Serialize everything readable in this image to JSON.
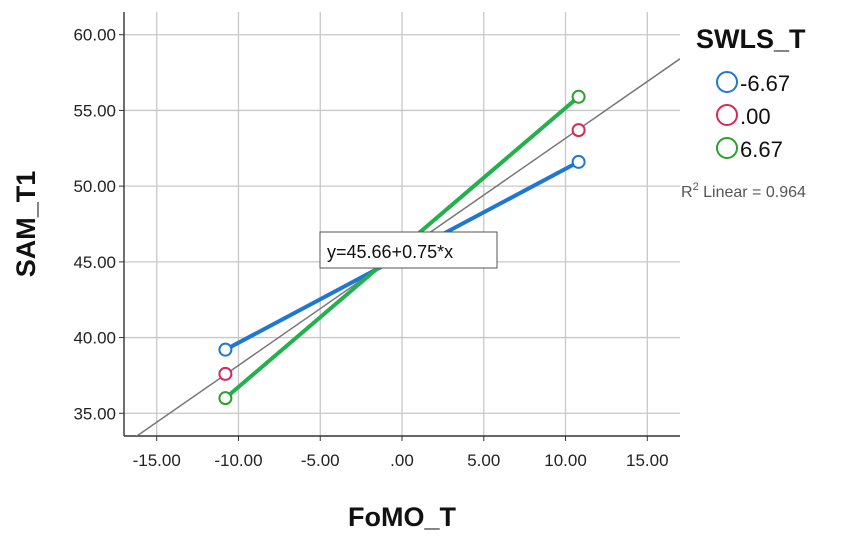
{
  "chart_data": {
    "type": "scatter",
    "xlabel": "FoMO_T",
    "ylabel": "SAM_T1",
    "xlim": [
      -17,
      17
    ],
    "ylim": [
      33.5,
      61.5
    ],
    "x_ticks": [
      -15,
      -10,
      -5,
      0,
      5,
      10,
      15
    ],
    "x_tick_labels": [
      "-15.00",
      "-10.00",
      "-5.00",
      ".00",
      "5.00",
      "10.00",
      "15.00"
    ],
    "y_ticks": [
      35,
      40,
      45,
      50,
      55,
      60
    ],
    "y_tick_labels": [
      "35.00",
      "40.00",
      "45.00",
      "50.00",
      "55.00",
      "60.00"
    ],
    "grid": true,
    "legend": {
      "title": "SWLS_T",
      "placement": "right"
    },
    "series": [
      {
        "name": "-6.67",
        "color": "#1f77d4",
        "x": [
          -10.8,
          10.8
        ],
        "y": [
          39.2,
          51.6
        ]
      },
      {
        "name": ".00",
        "color": "#d62a55",
        "x": [
          -10.8,
          10.8
        ],
        "y": [
          37.6,
          53.7
        ]
      },
      {
        "name": "6.67",
        "color": "#2ca02c",
        "x": [
          -10.8,
          10.8
        ],
        "y": [
          36.0,
          55.9
        ]
      }
    ],
    "fit_lines": [
      {
        "series": "-6.67",
        "color": "#1f77d4"
      },
      {
        "series": "6.67",
        "color": "#22b14c"
      }
    ],
    "total_fit": {
      "equation": "y=45.66+0.75*x",
      "intercept": 45.66,
      "slope": 0.75,
      "r2_label": "R",
      "r2_sup": "2",
      "r2_text": " Linear = 0.964",
      "color": "#777777"
    }
  }
}
